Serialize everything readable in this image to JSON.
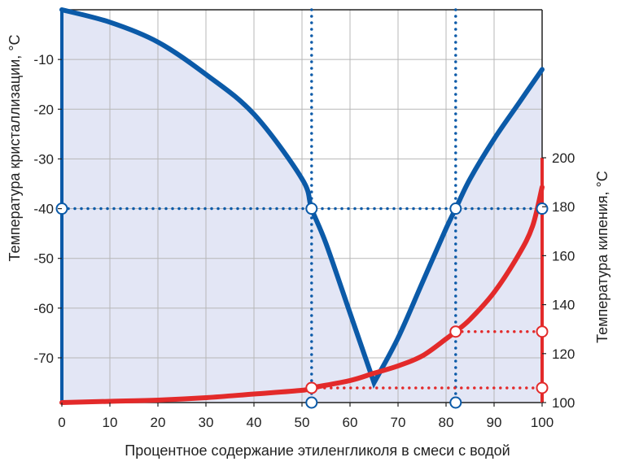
{
  "chart_data": {
    "type": "line",
    "xlabel": "Процентное содержание этиленгликоля в смеси с водой",
    "ylabel_left": "Температура кристаллизации, °С",
    "ylabel_right": "Температура кипения, °С",
    "xlim": [
      0,
      100
    ],
    "ylim_left": [
      -79,
      0
    ],
    "ylim_right": [
      100,
      200
    ],
    "x_ticks": [
      "0",
      "10",
      "20",
      "30",
      "40",
      "50",
      "60",
      "70",
      "80",
      "90",
      "100"
    ],
    "left_ticks": [
      "-10",
      "-20",
      "-30",
      "-40",
      "-50",
      "-60",
      "-70"
    ],
    "right_ticks": [
      "200",
      "180",
      "160",
      "140",
      "120",
      "100"
    ],
    "grid": true,
    "series": [
      {
        "axis": "left",
        "color": "#0b5aa8",
        "x": [
          0,
          10,
          20,
          30,
          40,
          50,
          52,
          55,
          60,
          65,
          70,
          75,
          80,
          82,
          85,
          90,
          95,
          100
        ],
        "y": [
          0,
          -2.5,
          -6.5,
          -13,
          -21,
          -34,
          -40,
          -47,
          -61,
          -75,
          -66,
          -55,
          -44,
          -40,
          -34,
          -26,
          -19,
          -12
        ]
      },
      {
        "axis": "right",
        "color": "#e32a2a",
        "x": [
          0,
          10,
          20,
          30,
          40,
          50,
          52,
          60,
          65,
          70,
          75,
          80,
          82,
          85,
          90,
          95,
          98,
          100
        ],
        "y": [
          100,
          100.5,
          101,
          102,
          103.5,
          105,
          106,
          109,
          112,
          115,
          119,
          126,
          129,
          134,
          145,
          160,
          172,
          188
        ]
      }
    ],
    "reference_lines": [
      {
        "axis": "left",
        "y": -40,
        "x_from": 0,
        "x_to": 100,
        "color": "#0b5aa8"
      },
      {
        "x": 52,
        "color": "#0b5aa8"
      },
      {
        "x": 82,
        "color": "#0b5aa8"
      },
      {
        "axis": "right",
        "y": 106,
        "x_from": 52,
        "x_to": 100,
        "color": "#e32a2a"
      },
      {
        "axis": "right",
        "y": 129,
        "x_from": 82,
        "x_to": 100,
        "color": "#e32a2a"
      }
    ],
    "markers": [
      {
        "x": 0,
        "axis": "left",
        "y": -40,
        "color": "#0b5aa8"
      },
      {
        "x": 52,
        "axis": "left",
        "y": -40,
        "color": "#0b5aa8"
      },
      {
        "x": 82,
        "axis": "left",
        "y": -40,
        "color": "#0b5aa8"
      },
      {
        "x": 100,
        "axis": "left",
        "y": -40,
        "color": "#0b5aa8"
      },
      {
        "x": 52,
        "axis": "right",
        "y": 106,
        "color": "#e32a2a"
      },
      {
        "x": 100,
        "axis": "right",
        "y": 106,
        "color": "#e32a2a"
      },
      {
        "x": 82,
        "axis": "right",
        "y": 129,
        "color": "#e32a2a"
      },
      {
        "x": 100,
        "axis": "right",
        "y": 129,
        "color": "#e32a2a"
      },
      {
        "x": 52,
        "axis": "right",
        "y": 100,
        "color": "#0b5aa8"
      },
      {
        "x": 82,
        "axis": "right",
        "y": 100,
        "color": "#0b5aa8"
      }
    ],
    "colors": {
      "fill": "#e3e6f5",
      "grid": "#b7b7b7",
      "frame": "#222222"
    }
  }
}
